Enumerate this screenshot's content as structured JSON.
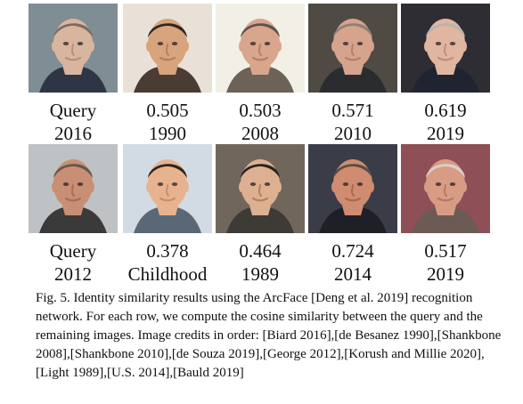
{
  "figure": {
    "rows": [
      {
        "images": [
          {
            "label": "Query",
            "sublabel": "2016",
            "palette": {
              "bg": "#7f8d95",
              "skin": "#d8b59f",
              "hair": "#7b6c62",
              "shirt": "#2e3545",
              "shade": "#b98f7a"
            }
          },
          {
            "label": "0.505",
            "sublabel": "1990",
            "palette": {
              "bg": "#e9e1d8",
              "skin": "#d7a47e",
              "hair": "#2f261f",
              "shirt": "#4a3b33",
              "shade": "#b77f5a"
            }
          },
          {
            "label": "0.503",
            "sublabel": "2008",
            "palette": {
              "bg": "#f2efe7",
              "skin": "#d8a58d",
              "hair": "#5e534b",
              "shirt": "#6c6258",
              "shade": "#b67f68"
            }
          },
          {
            "label": "0.571",
            "sublabel": "2010",
            "palette": {
              "bg": "#4f4a44",
              "skin": "#d6a38d",
              "hair": "#8d8177",
              "shirt": "#2b2c2f",
              "shade": "#b67f69"
            }
          },
          {
            "label": "0.619",
            "sublabel": "2019",
            "palette": {
              "bg": "#2d2d33",
              "skin": "#e0b6a1",
              "hair": "#b8b4af",
              "shirt": "#1f2430",
              "shade": "#c08f7b"
            }
          }
        ]
      },
      {
        "images": [
          {
            "label": "Query",
            "sublabel": "2012",
            "palette": {
              "bg": "#bfc2c5",
              "skin": "#c98f74",
              "hair": "#65574b",
              "shirt": "#3a3a3a",
              "shade": "#a86e57"
            }
          },
          {
            "label": "0.378",
            "sublabel": "Childhood",
            "palette": {
              "bg": "#d2dbe3",
              "skin": "#e7b38f",
              "hair": "#2f241d",
              "shirt": "#5a6876",
              "shade": "#c98f6d"
            }
          },
          {
            "label": "0.464",
            "sublabel": "1989",
            "palette": {
              "bg": "#70665b",
              "skin": "#ddb091",
              "hair": "#2a231e",
              "shirt": "#3e3a36",
              "shade": "#b78061"
            }
          },
          {
            "label": "0.724",
            "sublabel": "2014",
            "palette": {
              "bg": "#3a3c48",
              "skin": "#cf8c70",
              "hair": "#5b4d43",
              "shirt": "#1f2027",
              "shade": "#a86a53"
            }
          },
          {
            "label": "0.517",
            "sublabel": "2019",
            "palette": {
              "bg": "#8e4f56",
              "skin": "#d89c84",
              "hair": "#d7d3cc",
              "shirt": "#6c5b55",
              "shade": "#b47965"
            }
          }
        ]
      }
    ],
    "caption": {
      "label": "Fig. 5.",
      "text": "Identity similarity results using the ArcFace [Deng et al. 2019] recognition network. For each row, we compute the cosine similarity between the query and the remaining images. Image credits in order: [Biard 2016],[de Besanez 1990],[Shankbone 2008],[Shankbone 2010],[de Souza 2019],[George 2012],[Korush and Millie 2020],[Light 1989],[U.S. 2014],[Bauld 2019]"
    }
  }
}
